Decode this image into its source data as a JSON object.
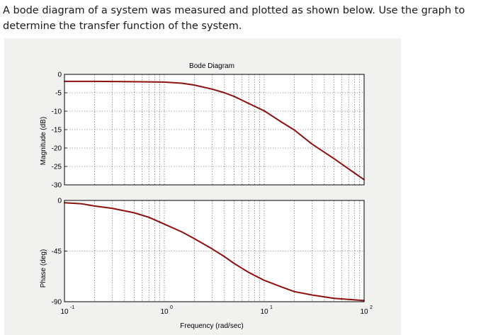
{
  "question": {
    "text": "A bode diagram of a system was measured and plotted as shown below. Use the graph to determine the transfer function of the system."
  },
  "colors": {
    "curve": "#8b1010",
    "background": "#f1f1ef",
    "axes": "#000000",
    "grid": "#555555"
  },
  "chart_data": {
    "type": "line",
    "title": "Bode Diagram",
    "xlabel": "Frequency  (rad/sec)",
    "xscale": "log",
    "xlim": [
      0.1,
      100
    ],
    "x_ticks": [
      {
        "value": 0.1,
        "base": "10",
        "exp": "-1"
      },
      {
        "value": 1,
        "base": "10",
        "exp": "0"
      },
      {
        "value": 10,
        "base": "10",
        "exp": "1"
      },
      {
        "value": 100,
        "base": "10",
        "exp": "2"
      }
    ],
    "grid": true,
    "panels": [
      {
        "name": "magnitude",
        "ylabel": "Magnitude (dB)",
        "ylim": [
          -30,
          0
        ],
        "y_ticks": [
          "0",
          "-5",
          "-10",
          "-15",
          "-20",
          "-25",
          "-30"
        ],
        "series": {
          "x": [
            0.1,
            0.2,
            0.5,
            1,
            1.5,
            2,
            3,
            4,
            5,
            7,
            10,
            15,
            20,
            30,
            50,
            70,
            100
          ],
          "y": [
            -1.9,
            -1.9,
            -2.0,
            -2.1,
            -2.4,
            -2.9,
            -4.0,
            -5.0,
            -6.0,
            -7.9,
            -9.9,
            -13.0,
            -15.1,
            -18.9,
            -22.9,
            -25.7,
            -28.6
          ]
        }
      },
      {
        "name": "phase",
        "ylabel": "Phase (deg)",
        "ylim": [
          -90,
          0
        ],
        "y_ticks": [
          "0",
          "-45",
          "-90"
        ],
        "series": {
          "x": [
            0.1,
            0.15,
            0.2,
            0.3,
            0.5,
            0.7,
            1,
            1.5,
            2,
            3,
            4,
            5,
            7,
            10,
            15,
            20,
            30,
            50,
            70,
            100
          ],
          "y": [
            -2,
            -3,
            -5,
            -7,
            -11,
            -15,
            -21,
            -28,
            -34,
            -43,
            -50,
            -56,
            -64,
            -71,
            -77,
            -81,
            -84,
            -87,
            -88,
            -89
          ]
        }
      }
    ]
  }
}
